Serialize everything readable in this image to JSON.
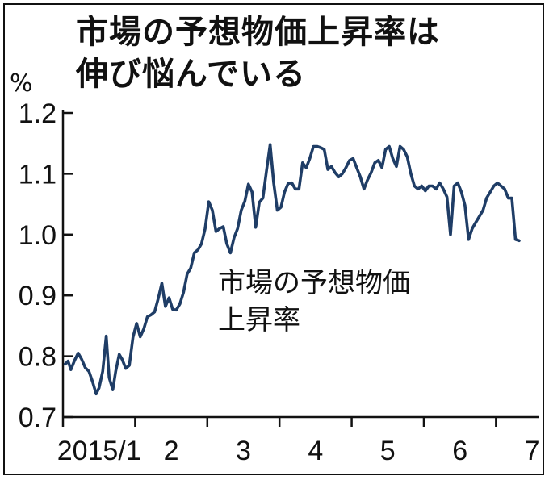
{
  "chart_data": {
    "type": "line",
    "title": [
      "市場の予想物価上昇率は",
      "伸び悩んでいる"
    ],
    "ylabel": "%",
    "ylim": [
      0.7,
      1.2
    ],
    "yticks": [
      "1.2",
      "1.1",
      "1.0",
      "0.9",
      "0.8",
      "0.7"
    ],
    "xlim": [
      0,
      6.6
    ],
    "xticks": [
      {
        "x": 0.5,
        "label": "2015/1"
      },
      {
        "x": 1.5,
        "label": "2"
      },
      {
        "x": 2.5,
        "label": "3"
      },
      {
        "x": 3.5,
        "label": "4"
      },
      {
        "x": 4.5,
        "label": "5"
      },
      {
        "x": 5.5,
        "label": "6"
      },
      {
        "x": 6.5,
        "label": "7"
      }
    ],
    "month_boundaries": [
      0,
      1,
      2,
      3,
      4,
      5,
      6
    ],
    "annotation": [
      "市場の予想物価",
      "上昇率"
    ],
    "colors": {
      "line": "#1f3d66",
      "axis": "#111111"
    },
    "series": [
      {
        "x": [
          0.03,
          0.07,
          0.11,
          0.16,
          0.21,
          0.26,
          0.31,
          0.36,
          0.41,
          0.46,
          0.5,
          0.55,
          0.6,
          0.64,
          0.69,
          0.73,
          0.78,
          0.82,
          0.87,
          0.92,
          0.97,
          1.02,
          1.07,
          1.12,
          1.17,
          1.22,
          1.27,
          1.32,
          1.37,
          1.42,
          1.47,
          1.52,
          1.57,
          1.62,
          1.67,
          1.72,
          1.77,
          1.82,
          1.87,
          1.92,
          1.97,
          2.02,
          2.07,
          2.12,
          2.17,
          2.22,
          2.27,
          2.32,
          2.37,
          2.42,
          2.47,
          2.52,
          2.57,
          2.62,
          2.67,
          2.72,
          2.77,
          2.82,
          2.87,
          2.92,
          2.97,
          3.02,
          3.07,
          3.12,
          3.17,
          3.22,
          3.27,
          3.32,
          3.37,
          3.42,
          3.47,
          3.52,
          3.57,
          3.62,
          3.67,
          3.72,
          3.77,
          3.82,
          3.87,
          3.92,
          3.97,
          4.02,
          4.07,
          4.12,
          4.17,
          4.22,
          4.27,
          4.32,
          4.37,
          4.42,
          4.47,
          4.52,
          4.57,
          4.62,
          4.67,
          4.72,
          4.77,
          4.82,
          4.87,
          4.92,
          4.97,
          5.02,
          5.07,
          5.12,
          5.17,
          5.22,
          5.27,
          5.32,
          5.37,
          5.42,
          5.47,
          5.52,
          5.57,
          5.62,
          5.67,
          5.72,
          5.77,
          5.82,
          5.87,
          5.92,
          5.97,
          6.02,
          6.07,
          6.12,
          6.17,
          6.22,
          6.27,
          6.32
        ],
        "y": [
          0.787,
          0.792,
          0.778,
          0.793,
          0.805,
          0.795,
          0.781,
          0.775,
          0.758,
          0.738,
          0.748,
          0.775,
          0.833,
          0.765,
          0.745,
          0.775,
          0.803,
          0.795,
          0.78,
          0.785,
          0.831,
          0.854,
          0.832,
          0.845,
          0.865,
          0.868,
          0.873,
          0.895,
          0.92,
          0.882,
          0.896,
          0.877,
          0.876,
          0.886,
          0.905,
          0.935,
          0.945,
          0.97,
          0.975,
          0.985,
          1.01,
          1.054,
          1.04,
          1.005,
          1.01,
          1.013,
          0.985,
          0.97,
          0.995,
          1.01,
          1.04,
          1.055,
          1.083,
          1.07,
          1.012,
          1.053,
          1.06,
          1.105,
          1.148,
          1.085,
          1.04,
          1.045,
          1.07,
          1.084,
          1.085,
          1.075,
          1.075,
          1.118,
          1.11,
          1.125,
          1.145,
          1.145,
          1.143,
          1.14,
          1.107,
          1.112,
          1.102,
          1.095,
          1.1,
          1.11,
          1.122,
          1.125,
          1.11,
          1.095,
          1.075,
          1.09,
          1.102,
          1.118,
          1.122,
          1.11,
          1.14,
          1.145,
          1.125,
          1.112,
          1.145,
          1.14,
          1.128,
          1.1,
          1.08,
          1.075,
          1.08,
          1.072,
          1.08,
          1.08,
          1.075,
          1.085,
          1.075,
          1.062,
          1.0,
          1.08,
          1.085,
          1.07,
          1.048,
          0.992,
          1.01,
          1.02,
          1.03,
          1.04,
          1.06,
          1.07,
          1.08,
          1.085,
          1.08,
          1.075,
          1.06,
          1.06,
          0.992,
          0.99
        ]
      }
    ]
  }
}
